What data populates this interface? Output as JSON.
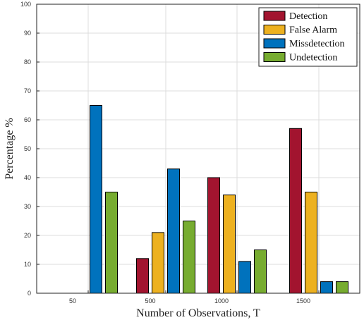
{
  "chart_data": {
    "type": "bar",
    "categories": [
      "50",
      "500",
      "1000",
      "1500"
    ],
    "series": [
      {
        "name": "Detection",
        "color": "#a2142f",
        "values": [
          0,
          12,
          40,
          57
        ]
      },
      {
        "name": "False Alarm",
        "color": "#edb120",
        "values": [
          0,
          21,
          34,
          35
        ]
      },
      {
        "name": "Missdetection",
        "color": "#0072bd",
        "values": [
          65,
          43,
          11,
          4
        ]
      },
      {
        "name": "Undetection",
        "color": "#77ac30",
        "values": [
          35,
          25,
          15,
          4
        ]
      }
    ],
    "yticks": [
      "0",
      "10",
      "20",
      "30",
      "40",
      "50",
      "60",
      "70",
      "80",
      "90",
      "100"
    ],
    "title": "",
    "xlabel": "Number of Observations, T",
    "ylabel": "Percentage %",
    "ylim": [
      0,
      100
    ],
    "grid": true,
    "legend_position": "top-right"
  }
}
